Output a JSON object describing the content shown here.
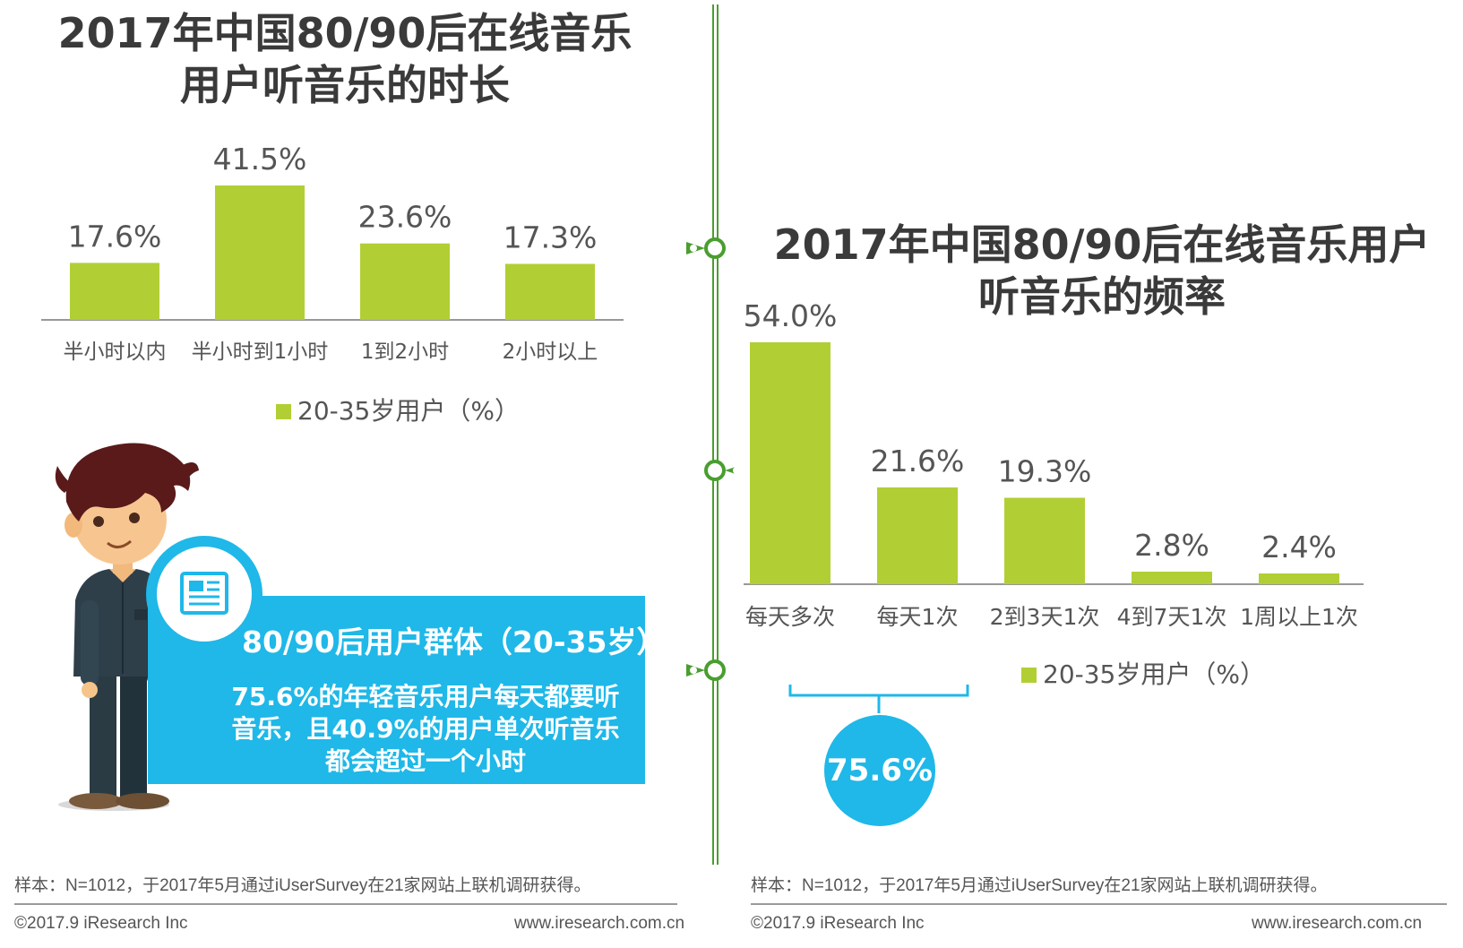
{
  "left_panel": {
    "title_line1": "2017年中国80/90后在线音乐",
    "title_line2": "用户听音乐的时长",
    "legend": "20-35岁用户（%）",
    "callout": {
      "heading": "80/90后用户群体（20-35岁）",
      "body_line1": "75.6%的年轻音乐用户每天都要听",
      "body_line2": "音乐，且40.9%的用户单次听音乐",
      "body_line3": "都会超过一个小时"
    },
    "note": "样本：N=1012，于2017年5月通过iUserSurvey在21家网站上联机调研获得。",
    "copyright": "©2017.9 iResearch Inc",
    "website": "www.iresearch.com.cn"
  },
  "right_panel": {
    "title_line1": "2017年中国80/90后在线音乐用户",
    "title_line2": "听音乐的频率",
    "legend": "20-35岁用户（%）",
    "bracket_value": "75.6%",
    "note": "样本：N=1012，于2017年5月通过iUserSurvey在21家网站上联机调研获得。",
    "copyright": "©2017.9 iResearch Inc",
    "website": "www.iresearch.com.cn"
  },
  "colors": {
    "bar": "#b1cf34",
    "accent_blue": "#1fb8e8",
    "divider_green": "#4a9e2f",
    "title_text": "#3a3a3a"
  },
  "icons": [
    "newspaper-icon",
    "timeline-node-icon",
    "person-illustration"
  ],
  "chart_data": [
    {
      "type": "bar",
      "categories": [
        "半小时以内",
        "半小时到1小时",
        "1到2小时",
        "2小时以上"
      ],
      "series": [
        {
          "name": "20-35岁用户（%）",
          "values": [
            17.6,
            41.5,
            23.6,
            17.3
          ]
        }
      ],
      "value_labels": [
        "17.6%",
        "41.5%",
        "23.6%",
        "17.3%"
      ],
      "title": "2017年中国80/90后在线音乐用户听音乐的时长",
      "ylim": [
        0,
        41.5
      ],
      "grid": false,
      "legend_position": "bottom"
    },
    {
      "type": "bar",
      "categories": [
        "每天多次",
        "每天1次",
        "2到3天1次",
        "4到7天1次",
        "1周以上1次"
      ],
      "series": [
        {
          "name": "20-35岁用户（%）",
          "values": [
            54.0,
            21.6,
            19.3,
            2.8,
            2.4
          ]
        }
      ],
      "value_labels": [
        "54.0%",
        "21.6%",
        "19.3%",
        "2.8%",
        "2.4%"
      ],
      "title": "2017年中国80/90后在线音乐用户听音乐的频率",
      "ylim": [
        0,
        54.0
      ],
      "grid": false,
      "legend_position": "bottom"
    }
  ]
}
